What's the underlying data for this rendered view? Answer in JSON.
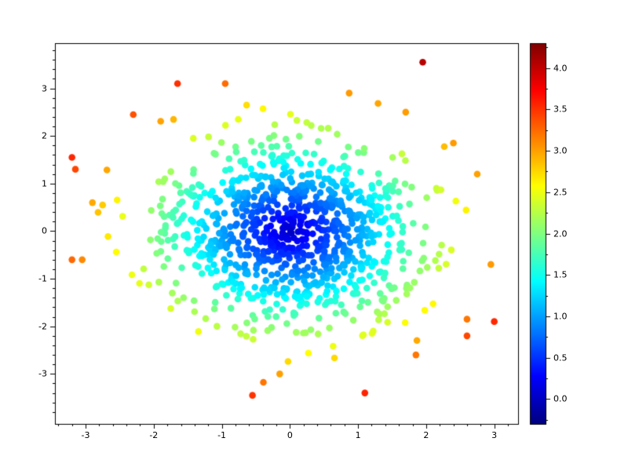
{
  "chart_data": {
    "type": "scatter",
    "title": "",
    "xlabel": "",
    "ylabel": "",
    "xlim": [
      -3.45,
      3.35
    ],
    "ylim": [
      -4.05,
      3.95
    ],
    "xticks": [
      -3,
      -2,
      -1,
      0,
      1,
      2,
      3
    ],
    "yticks": [
      -3,
      -2,
      -1,
      0,
      1,
      2,
      3
    ],
    "xtick_labels": [
      "-3",
      "-2",
      "-1",
      "0",
      "1",
      "2",
      "3"
    ],
    "ytick_labels": [
      "-3",
      "-2",
      "-1",
      "0",
      "1",
      "2",
      "3"
    ],
    "axis_minor_tick_step": 0.2,
    "grid": false,
    "marker_shape": "circle",
    "marker_radius_px": 4.3,
    "color_value": "sqrt(x^2 + y^2)",
    "colormap": "jet",
    "colorbar": {
      "vmin": -0.3,
      "vmax": 4.3,
      "ticks": [
        0.0,
        0.5,
        1.0,
        1.5,
        2.0,
        2.5,
        3.0,
        3.5,
        4.0
      ],
      "tick_labels": [
        "0.0",
        "0.5",
        "1.0",
        "1.5",
        "2.0",
        "2.5",
        "3.0",
        "3.5",
        "4.0"
      ],
      "minor_tick_step": 0.25,
      "position": "right"
    },
    "cloud": {
      "count": 960,
      "sigma_x": 0.95,
      "sigma_y": 0.95,
      "center": [
        0,
        0
      ],
      "seed": 987123
    },
    "outlier_points": [
      [
        -1.65,
        3.1
      ],
      [
        -0.95,
        3.1
      ],
      [
        1.95,
        3.55
      ],
      [
        1.7,
        2.5
      ],
      [
        -2.3,
        2.45
      ],
      [
        -3.2,
        1.55
      ],
      [
        -3.15,
        1.3
      ],
      [
        -2.9,
        0.6
      ],
      [
        -2.75,
        0.55
      ],
      [
        -3.2,
        -0.6
      ],
      [
        -3.05,
        -0.6
      ],
      [
        -0.55,
        -3.45
      ],
      [
        1.1,
        -3.4
      ],
      [
        -0.15,
        -3.0
      ],
      [
        1.85,
        -2.6
      ],
      [
        2.6,
        -2.2
      ],
      [
        2.6,
        -1.85
      ],
      [
        3.0,
        -1.9
      ],
      [
        2.95,
        -0.7
      ],
      [
        2.75,
        1.2
      ],
      [
        2.4,
        1.85
      ]
    ],
    "background": "#ffffff",
    "axis_color": "#000000"
  }
}
